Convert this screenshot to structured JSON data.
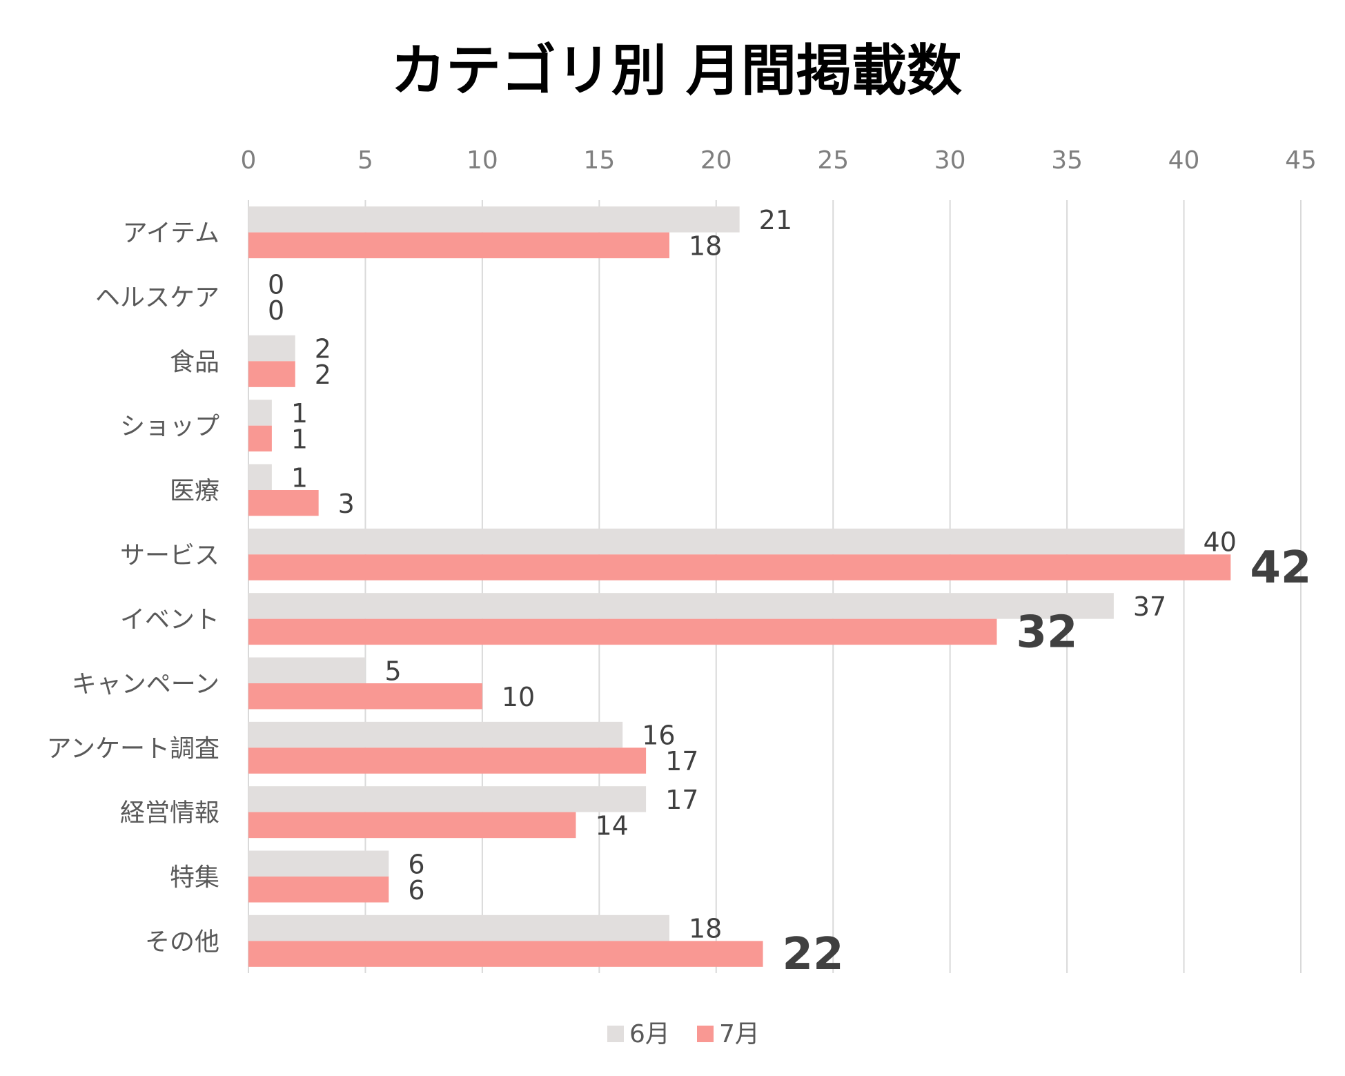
{
  "chart_data": {
    "type": "bar",
    "orientation": "horizontal",
    "title": "カテゴリ別 月間掲載数",
    "xlim": [
      0,
      45
    ],
    "x_ticks": [
      0,
      5,
      10,
      15,
      20,
      25,
      30,
      35,
      40,
      45
    ],
    "grid": true,
    "legend_position": "bottom",
    "categories": [
      "アイテム",
      "ヘルスケア",
      "食品",
      "ショップ",
      "医療",
      "サービス",
      "イベント",
      "キャンペーン",
      "アンケート調査",
      "経営情報",
      "特集",
      "その他"
    ],
    "series": [
      {
        "name": "6月",
        "color": "#e1dedd",
        "values": [
          21,
          0,
          2,
          1,
          1,
          40,
          37,
          5,
          16,
          17,
          6,
          18
        ]
      },
      {
        "name": "7月",
        "color": "#f99893",
        "values": [
          18,
          0,
          2,
          1,
          3,
          42,
          32,
          10,
          17,
          14,
          6,
          22
        ]
      }
    ],
    "highlighted_labels": [
      {
        "series": "7月",
        "category": "サービス"
      },
      {
        "series": "7月",
        "category": "イベント"
      },
      {
        "series": "7月",
        "category": "その他"
      }
    ]
  }
}
